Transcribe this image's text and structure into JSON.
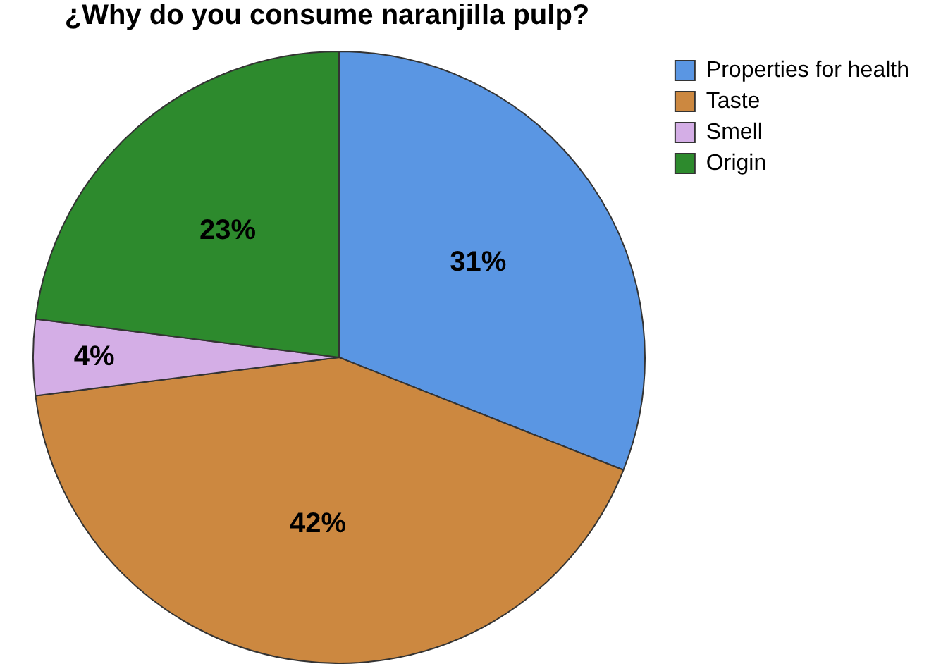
{
  "chart_data": {
    "type": "pie",
    "title": "¿Why do you consume naranjilla pulp?",
    "categories": [
      "Properties for health",
      "Taste",
      "Smell",
      "Origin"
    ],
    "values": [
      31,
      42,
      4,
      23
    ],
    "colors": [
      "#5a96e3",
      "#cc8840",
      "#d4aee6",
      "#2d8a2d"
    ],
    "value_labels": [
      "31%",
      "42%",
      "4%",
      "23%"
    ],
    "legend": "top right"
  }
}
